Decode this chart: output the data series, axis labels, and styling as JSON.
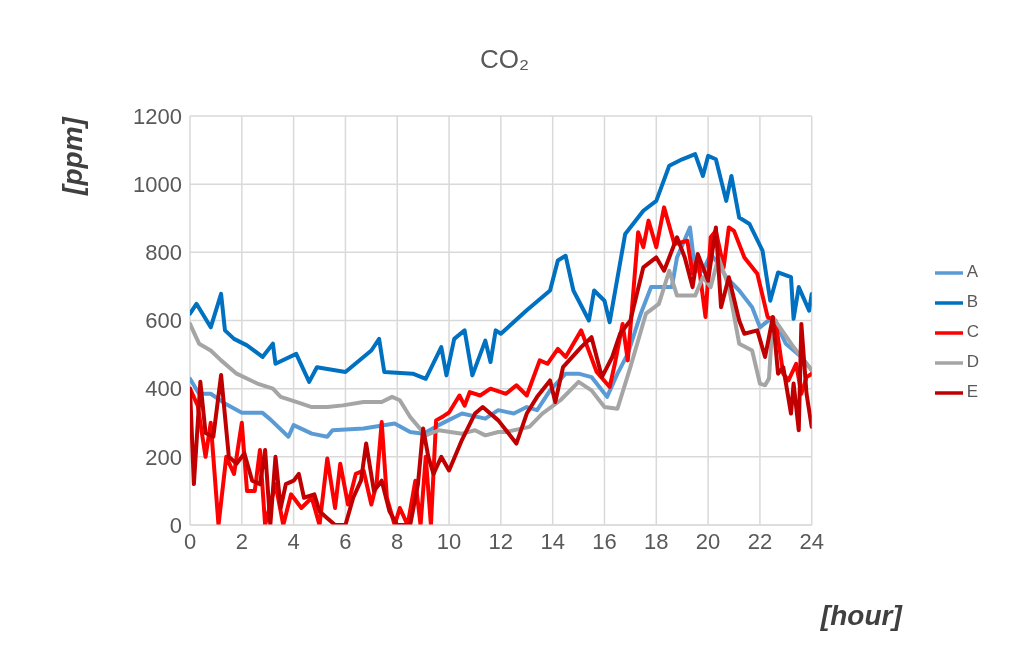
{
  "chart_data": {
    "type": "line",
    "title": "CO₂",
    "xlabel": "[hour]",
    "ylabel": "[ppm]",
    "xlim": [
      0,
      24
    ],
    "xticks": [
      0,
      2,
      4,
      6,
      8,
      10,
      12,
      14,
      16,
      18,
      20,
      22,
      24
    ],
    "ylim": [
      0,
      1200
    ],
    "yticks": [
      0,
      200,
      400,
      600,
      800,
      1000,
      1200
    ],
    "grid": true,
    "legend": "right",
    "marker": "none",
    "line_style": "solid",
    "series": [
      {
        "name": "A",
        "color": "#5b9bd5",
        "x": [
          0,
          0.35,
          0.8,
          1.4,
          2,
          2.8,
          3.1,
          3.8,
          4,
          4.7,
          5.3,
          5.5,
          6.7,
          7.9,
          8.5,
          9,
          9.6,
          10.5,
          11.4,
          11.9,
          12.5,
          13,
          13.4,
          13.9,
          14.5,
          15,
          15.5,
          16.1,
          16.5,
          16.9,
          17.4,
          17.8,
          18.6,
          18.8,
          19.3,
          19.5,
          19.8,
          20.1,
          20.4,
          20.7,
          21.2,
          21.7,
          22,
          22.5,
          23,
          23.6,
          24
        ],
        "values": [
          429,
          385,
          385,
          354,
          329,
          329,
          310,
          259,
          293,
          268,
          259,
          278,
          283,
          298,
          273,
          268,
          293,
          327,
          312,
          337,
          327,
          346,
          337,
          395,
          444,
          444,
          434,
          376,
          444,
          502,
          620,
          698,
          698,
          785,
          873,
          746,
          746,
          795,
          766,
          727,
          688,
          639,
          580,
          610,
          532,
          493,
          454
        ]
      },
      {
        "name": "B",
        "color": "#0070c0",
        "x": [
          0,
          0.25,
          0.8,
          1.2,
          1.35,
          1.7,
          2.2,
          2.8,
          3.2,
          3.3,
          4.1,
          4.6,
          4.9,
          6,
          7,
          7.3,
          7.5,
          8.6,
          9.1,
          9.7,
          9.9,
          10.2,
          10.6,
          10.9,
          11.4,
          11.6,
          11.8,
          12,
          13,
          13.9,
          14.2,
          14.5,
          14.8,
          15.4,
          15.6,
          16,
          16.2,
          16.8,
          17.5,
          18,
          18.5,
          19,
          19.5,
          19.8,
          20,
          20.3,
          20.7,
          20.9,
          21.2,
          21.6,
          22.1,
          22.4,
          22.7,
          23.2,
          23.3,
          23.5,
          23.9,
          24
        ],
        "values": [
          620,
          649,
          580,
          678,
          571,
          546,
          527,
          493,
          532,
          473,
          502,
          420,
          463,
          449,
          512,
          546,
          449,
          444,
          429,
          522,
          439,
          546,
          571,
          439,
          541,
          478,
          571,
          561,
          630,
          688,
          776,
          790,
          688,
          600,
          688,
          658,
          595,
          854,
          922,
          951,
          1054,
          1073,
          1088,
          1024,
          1083,
          1073,
          951,
          1024,
          902,
          883,
          805,
          658,
          741,
          727,
          605,
          698,
          629,
          678
        ]
      },
      {
        "name": "C",
        "color": "#ff0000",
        "x": [
          0,
          0.3,
          0.6,
          0.8,
          1.1,
          1.4,
          1.7,
          2,
          2.2,
          2.5,
          2.7,
          2.9,
          3.3,
          3.6,
          3.9,
          4.3,
          4.7,
          5,
          5.3,
          5.6,
          5.8,
          6.1,
          6.4,
          6.7,
          7,
          7.2,
          7.4,
          7.6,
          7.9,
          8.1,
          8.4,
          8.7,
          8.9,
          9.1,
          9.3,
          9.5,
          9.8,
          10,
          10.4,
          10.6,
          10.8,
          11.2,
          11.6,
          12.2,
          12.6,
          13,
          13.5,
          13.8,
          14.2,
          14.5,
          15.1,
          15.7,
          16.2,
          16.4,
          16.7,
          16.9,
          17.3,
          17.5,
          17.7,
          18,
          18.3,
          18.7,
          19.2,
          19.4,
          19.6,
          19.9,
          20.1,
          20.3,
          20.6,
          20.8,
          21,
          21.4,
          21.9,
          22.3,
          22.6,
          22.9,
          23.1,
          23.4,
          23.6,
          23.8,
          24
        ],
        "values": [
          400,
          350,
          200,
          300,
          0,
          200,
          150,
          300,
          100,
          100,
          220,
          0,
          120,
          0,
          90,
          50,
          80,
          0,
          195,
          50,
          180,
          60,
          150,
          160,
          60,
          120,
          302,
          80,
          0,
          50,
          0,
          130,
          0,
          200,
          0,
          307,
          320,
          330,
          380,
          350,
          390,
          380,
          400,
          385,
          410,
          380,
          483,
          473,
          517,
          493,
          571,
          449,
          405,
          473,
          590,
          483,
          859,
          815,
          893,
          815,
          932,
          824,
          834,
          737,
          785,
          610,
          844,
          863,
          756,
          873,
          863,
          785,
          737,
          610,
          600,
          444,
          424,
          473,
          385,
          434,
          444
        ]
      },
      {
        "name": "D",
        "color": "#a5a5a5",
        "x": [
          0,
          0.35,
          0.8,
          1.2,
          1.8,
          2.6,
          3.2,
          3.5,
          4.1,
          4.7,
          5.3,
          5.9,
          6.7,
          7.4,
          7.8,
          8.1,
          8.5,
          9.1,
          9.6,
          10.5,
          11,
          11.4,
          11.9,
          12.2,
          13.1,
          13.6,
          14.3,
          15,
          15.5,
          16,
          16.5,
          17,
          17.6,
          18.1,
          18.5,
          18.8,
          19.5,
          19.8,
          20.1,
          20.4,
          20.8,
          21.2,
          21.7,
          22,
          22.2,
          22.35,
          22.5,
          23.3,
          24
        ],
        "values": [
          590,
          532,
          512,
          483,
          444,
          415,
          400,
          376,
          361,
          346,
          346,
          351,
          361,
          361,
          376,
          366,
          317,
          263,
          278,
          268,
          278,
          263,
          273,
          273,
          288,
          327,
          366,
          420,
          395,
          346,
          341,
          463,
          620,
          649,
          746,
          673,
          673,
          727,
          698,
          785,
          698,
          532,
          512,
          415,
          410,
          430,
          610,
          522,
          454
        ]
      },
      {
        "name": "E",
        "color": "#c00000",
        "x": [
          0,
          0.15,
          0.4,
          0.6,
          0.9,
          1.2,
          1.5,
          1.8,
          2.1,
          2.4,
          2.7,
          2.9,
          3.1,
          3.3,
          3.5,
          3.7,
          4,
          4.2,
          4.4,
          4.8,
          5,
          5.3,
          5.6,
          6,
          6.3,
          6.6,
          6.8,
          7.1,
          7.4,
          7.7,
          8,
          8.5,
          8.8,
          9,
          9.2,
          9.4,
          9.7,
          10,
          10.5,
          11,
          11.3,
          11.9,
          12.2,
          12.6,
          13,
          13.4,
          13.9,
          14.1,
          14.4,
          15.1,
          15.5,
          15.9,
          16.3,
          16.6,
          17,
          17.5,
          18,
          18.3,
          18.5,
          18.8,
          19.1,
          19.4,
          19.6,
          20,
          20.3,
          20.5,
          20.8,
          21.2,
          21.4,
          21.9,
          22.2,
          22.5,
          22.7,
          22.9,
          23.2,
          23.3,
          23.5,
          23.6,
          23.8,
          24
        ],
        "values": [
          400,
          120,
          420,
          270,
          259,
          440,
          200,
          180,
          210,
          130,
          120,
          220,
          0,
          200,
          50,
          120,
          130,
          150,
          80,
          90,
          40,
          20,
          0,
          0,
          80,
          130,
          239,
          100,
          130,
          40,
          0,
          0,
          120,
          283,
          200,
          150,
          200,
          160,
          250,
          327,
          346,
          307,
          278,
          239,
          327,
          376,
          424,
          361,
          463,
          522,
          551,
          434,
          493,
          561,
          600,
          756,
          785,
          746,
          785,
          844,
          785,
          698,
          795,
          717,
          873,
          639,
          727,
          600,
          561,
          571,
          493,
          610,
          444,
          463,
          327,
          415,
          278,
          590,
          385,
          288
        ]
      }
    ]
  }
}
